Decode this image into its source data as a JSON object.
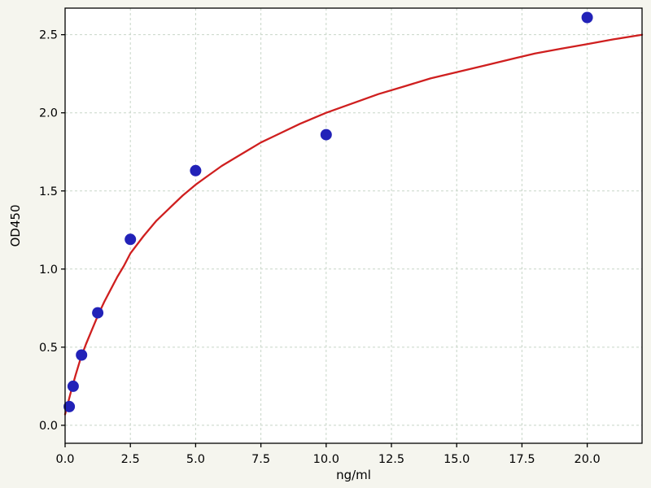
{
  "figure": {
    "kind": "elisa-standard-curve"
  },
  "chart_data": {
    "type": "scatter",
    "title": "",
    "xlabel": "ng/ml",
    "ylabel": "OD450",
    "xlim": [
      0,
      22.1
    ],
    "ylim": [
      -0.115,
      2.67
    ],
    "xtick_values": [
      0.0,
      2.5,
      5.0,
      7.5,
      10.0,
      12.5,
      15.0,
      17.5,
      20.0
    ],
    "xtick_labels": [
      "0.0",
      "2.5",
      "5.0",
      "7.5",
      "10.0",
      "12.5",
      "15.0",
      "17.5",
      "20.0"
    ],
    "ytick_values": [
      0.0,
      0.5,
      1.0,
      1.5,
      2.0,
      2.5
    ],
    "ytick_labels": [
      "0.0",
      "0.5",
      "1.0",
      "1.5",
      "2.0",
      "2.5"
    ],
    "grid": true,
    "grid_style": "dashed",
    "legend": "none",
    "series": [
      {
        "name": "standard-points",
        "type": "scatter",
        "color": "#2222b8",
        "x": [
          0.16,
          0.31,
          0.63,
          1.25,
          2.5,
          5,
          10,
          20
        ],
        "y": [
          0.12,
          0.25,
          0.45,
          0.72,
          1.19,
          1.63,
          1.86,
          2.61
        ]
      },
      {
        "name": "fit-curve",
        "type": "line",
        "color": "#cf1f1f",
        "x": [
          0,
          0.2,
          0.4,
          0.6,
          0.8,
          1.0,
          1.25,
          1.5,
          1.75,
          2.0,
          2.25,
          2.5,
          3.0,
          3.5,
          4.0,
          4.5,
          5.0,
          5.5,
          6.0,
          6.5,
          7.0,
          7.5,
          8.0,
          9.0,
          10.0,
          11.0,
          12.0,
          13.0,
          14.0,
          15.0,
          16.0,
          17.0,
          18.0,
          19.0,
          20.0,
          21.0,
          22.1
        ],
        "y": [
          0.07,
          0.2,
          0.32,
          0.43,
          0.52,
          0.6,
          0.7,
          0.79,
          0.87,
          0.95,
          1.02,
          1.1,
          1.21,
          1.31,
          1.39,
          1.47,
          1.54,
          1.6,
          1.66,
          1.71,
          1.76,
          1.81,
          1.85,
          1.93,
          2.0,
          2.06,
          2.12,
          2.17,
          2.22,
          2.26,
          2.3,
          2.34,
          2.38,
          2.41,
          2.44,
          2.47,
          2.5
        ]
      }
    ],
    "colors": {
      "figure_background": "#f5f5ee",
      "plot_background": "#ffffff",
      "grid": "#c7d5c7",
      "border": "#000000",
      "tick_text": "#000000"
    }
  }
}
